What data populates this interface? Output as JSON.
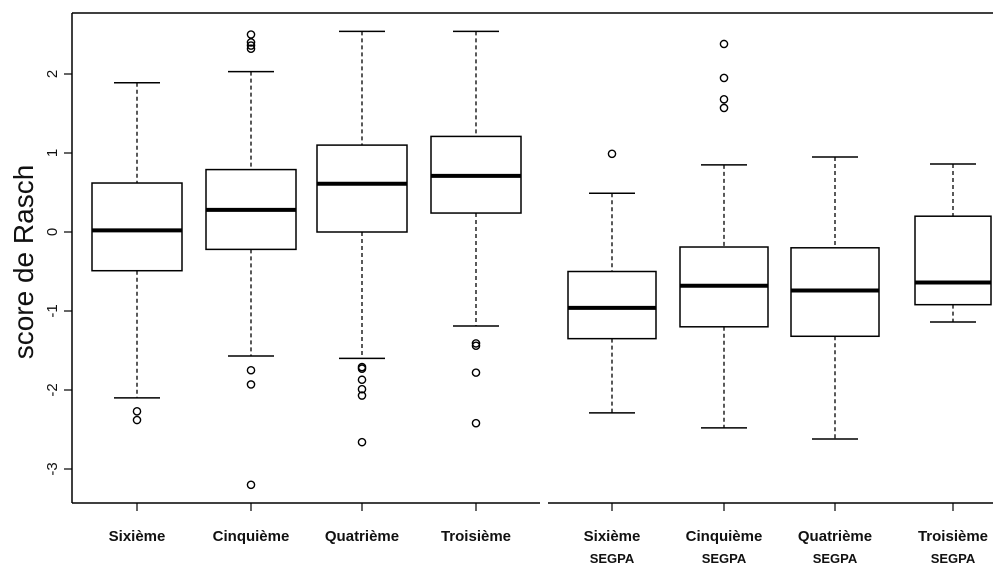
{
  "chart_data": {
    "type": "boxplot",
    "title": "",
    "xlabel": "",
    "ylabel": "score de Rasch",
    "ylim": [
      -3.4,
      2.75
    ],
    "yticks": [
      -3,
      -2,
      -1,
      0,
      1,
      2
    ],
    "ytick_labels": [
      "-3",
      "-2",
      "-1",
      "0",
      "1",
      "2"
    ],
    "grid": false,
    "groups": [
      {
        "name": "Sixième",
        "sublabel": "",
        "whisker_low": -2.1,
        "q1": -0.49,
        "median": 0.02,
        "q3": 0.62,
        "whisker_high": 1.89,
        "outliers": [
          -2.27,
          -2.38
        ]
      },
      {
        "name": "Cinquième",
        "sublabel": "",
        "whisker_low": -1.57,
        "q1": -0.22,
        "median": 0.28,
        "q3": 0.79,
        "whisker_high": 2.03,
        "outliers": [
          2.5,
          2.4,
          2.36,
          2.32,
          -1.75,
          -1.93,
          -3.2
        ]
      },
      {
        "name": "Quatrième",
        "sublabel": "",
        "whisker_low": -1.6,
        "q1": 0.0,
        "median": 0.61,
        "q3": 1.1,
        "whisker_high": 2.54,
        "outliers": [
          -1.71,
          -1.73,
          -1.87,
          -1.99,
          -2.07,
          -2.66
        ]
      },
      {
        "name": "Troisième",
        "sublabel": "",
        "whisker_low": -1.19,
        "q1": 0.24,
        "median": 0.71,
        "q3": 1.21,
        "whisker_high": 2.54,
        "outliers": [
          -1.41,
          -1.44,
          -1.78,
          -2.42
        ]
      },
      {
        "name": "Sixième",
        "sublabel": "SEGPA",
        "whisker_low": -2.29,
        "q1": -1.35,
        "median": -0.96,
        "q3": -0.5,
        "whisker_high": 0.49,
        "outliers": [
          0.99
        ]
      },
      {
        "name": "Cinquième",
        "sublabel": "SEGPA",
        "whisker_low": -2.48,
        "q1": -1.2,
        "median": -0.68,
        "q3": -0.19,
        "whisker_high": 0.85,
        "outliers": [
          2.38,
          1.95,
          1.68,
          1.57
        ]
      },
      {
        "name": "Quatrième",
        "sublabel": "SEGPA",
        "whisker_low": -2.62,
        "q1": -1.32,
        "median": -0.74,
        "q3": -0.2,
        "whisker_high": 0.95,
        "outliers": []
      },
      {
        "name": "Troisième",
        "sublabel": "SEGPA",
        "whisker_low": -1.14,
        "q1": -0.92,
        "median": -0.64,
        "q3": 0.2,
        "whisker_high": 0.86,
        "outliers": []
      }
    ]
  }
}
